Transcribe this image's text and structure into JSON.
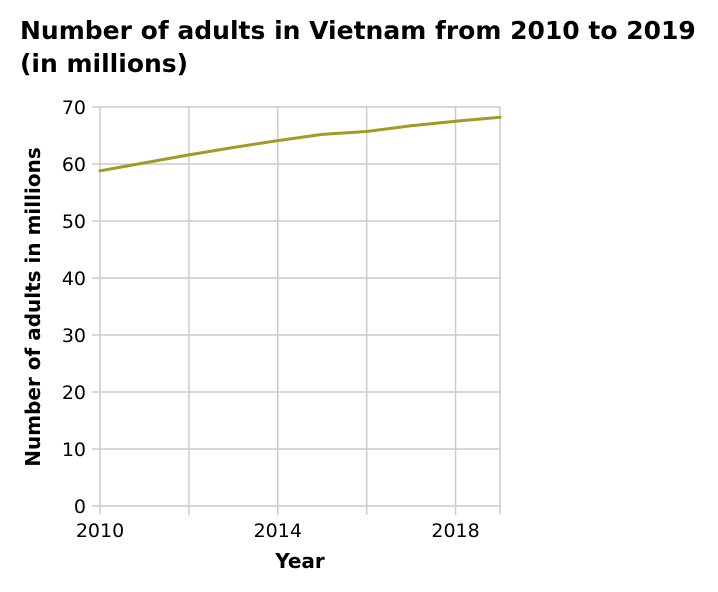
{
  "chart_data": {
    "type": "line",
    "title": "Number of adults in Vietnam from 2010 to 2019 (in millions)",
    "xlabel": "Year",
    "ylabel": "Number of adults in millions",
    "xlim": [
      2010,
      2019
    ],
    "ylim": [
      0,
      70
    ],
    "x_ticks": [
      2010,
      2014,
      2018
    ],
    "x_tick_labels": [
      "2010",
      "2014",
      "2018"
    ],
    "y_ticks": [
      0,
      10,
      20,
      30,
      40,
      50,
      60,
      70
    ],
    "y_tick_labels": [
      "0",
      "10",
      "20",
      "30",
      "40",
      "50",
      "60",
      "70"
    ],
    "grid": true,
    "line_color": "#a39a26",
    "series": [
      {
        "x": [
          2010,
          2011,
          2012,
          2013,
          2014,
          2015,
          2016,
          2017,
          2018,
          2019
        ],
        "values": [
          58.8,
          60.2,
          61.6,
          62.9,
          64.1,
          65.2,
          65.7,
          66.7,
          67.5,
          68.2
        ]
      }
    ]
  }
}
